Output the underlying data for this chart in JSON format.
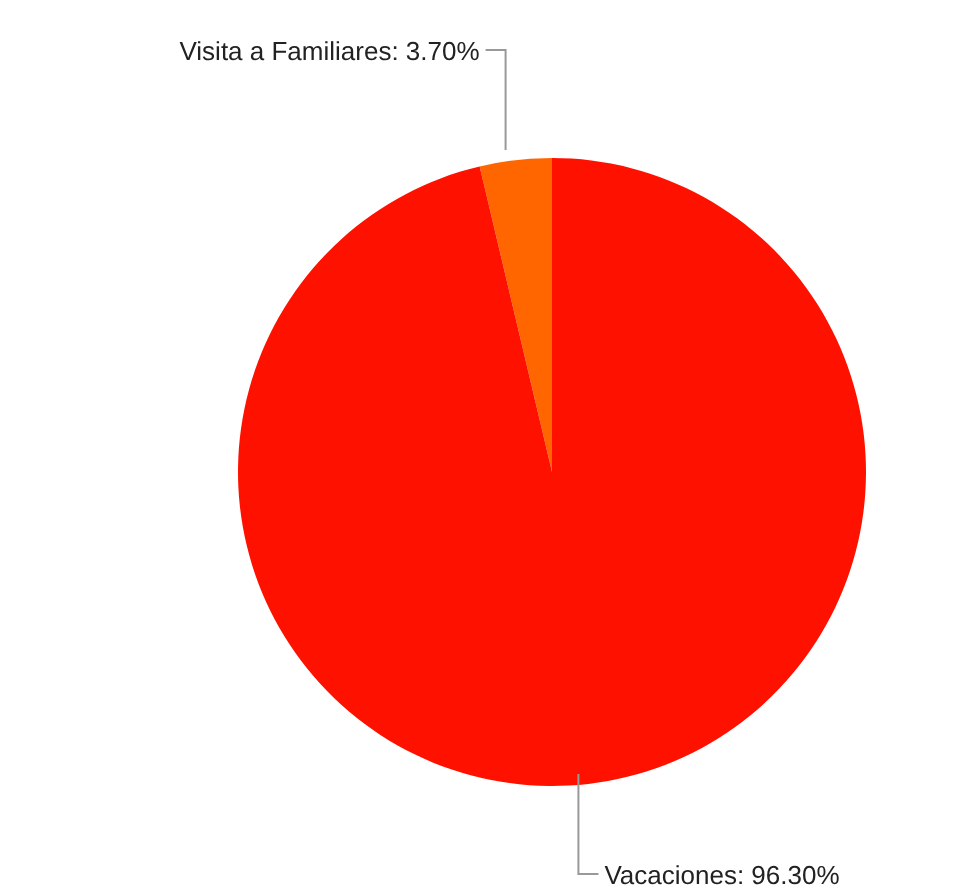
{
  "chart_data": {
    "type": "pie",
    "categories": [
      "Visita a Familiares",
      "Vacaciones"
    ],
    "values": [
      3.7,
      96.3
    ],
    "value_labels": [
      "3.70%",
      "96.30%"
    ],
    "colors": [
      "#ff6600",
      "#ff1100"
    ]
  }
}
